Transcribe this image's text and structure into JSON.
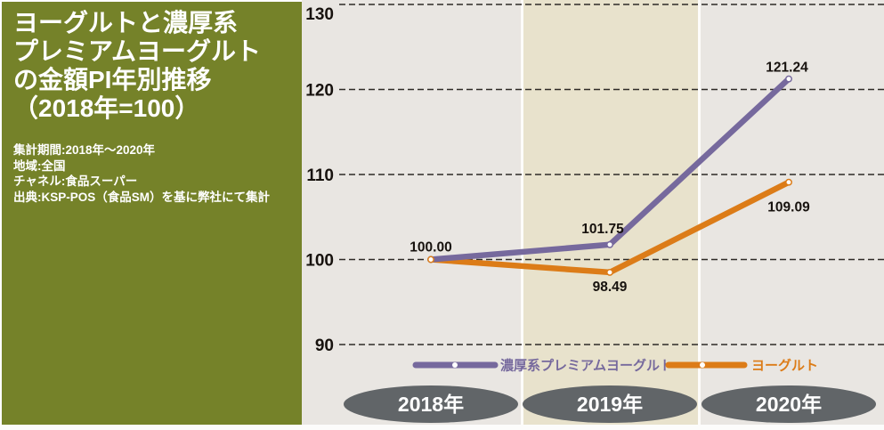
{
  "panel": {
    "title_lines": [
      "ヨーグルトと濃厚系",
      "プレミアムヨーグルト",
      "の金額PI年別推移",
      "（2018年=100）"
    ],
    "meta_lines": [
      "集計期間:2018年～2020年",
      "地域:全国",
      "チャネル:食品スーパー",
      "出典:KSP-POS（食品SM）を基に弊社にて集計"
    ],
    "bg_color": "#758229",
    "text_color": "#ffffff"
  },
  "chart_data": {
    "type": "line",
    "title": "ヨーグルトと濃厚系プレミアムヨーグルトの金額PI年別推移（2018年=100）",
    "categories": [
      "2018年",
      "2019年",
      "2020年"
    ],
    "series": [
      {
        "name": "濃厚系プレミアムヨーグルト",
        "values": [
          100.0,
          101.75,
          121.24
        ],
        "point_labels": [
          "100.00",
          "101.75",
          "121.24"
        ],
        "color": "#76699d"
      },
      {
        "name": "ヨーグルト",
        "values": [
          100.0,
          98.49,
          109.09
        ],
        "point_labels": [
          "",
          "98.49",
          "109.09"
        ],
        "color": "#dc7c18"
      }
    ],
    "y_ticks": [
      130,
      120,
      110,
      100,
      90
    ],
    "ylim": [
      88,
      130.5
    ],
    "grid": "horizontal-dashed",
    "legend_position": "bottom",
    "highlight_band_category": "2019年",
    "colors": {
      "plot_bg": "#e9e6e2",
      "band_bg": "#e8e2cc",
      "divider": "#fdfcfa",
      "axis_pill_bg": "#616568",
      "axis_pill_text": "#ffffff",
      "grid_color": "#2e2a26",
      "label_color": "#17120e",
      "marker_fill": "#ffffff"
    }
  }
}
